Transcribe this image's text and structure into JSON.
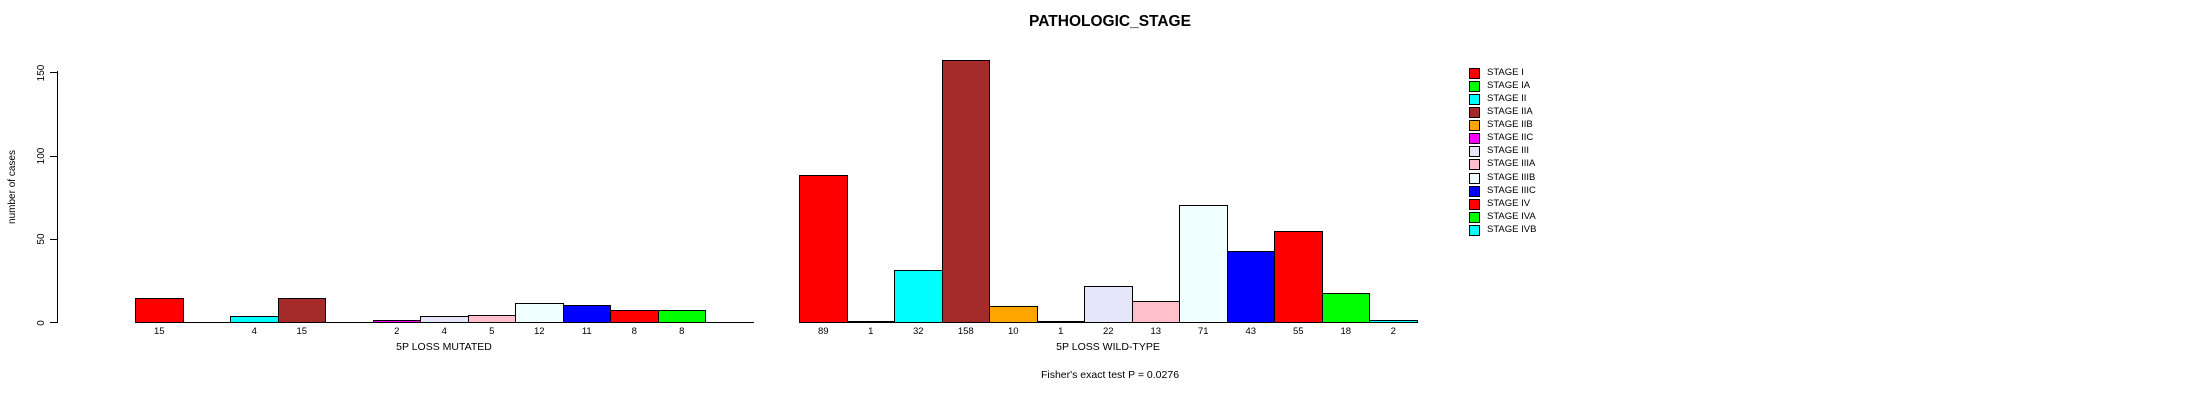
{
  "title": "PATHOLOGIC_STAGE",
  "footer": "Fisher's exact test P = 0.0276",
  "y_axis": {
    "label": "number of cases",
    "ticks": [
      0,
      50,
      100,
      150
    ]
  },
  "legend": {
    "position": "right"
  },
  "chart_data": {
    "type": "bar",
    "title": "PATHOLOGIC_STAGE",
    "xlabel": "",
    "ylabel": "number of cases",
    "ylim": [
      0,
      160
    ],
    "yticks": [
      0,
      50,
      100,
      150
    ],
    "grid": false,
    "legend_position": "right",
    "categories": [
      "STAGE I",
      "STAGE IA",
      "STAGE II",
      "STAGE IIA",
      "STAGE IIB",
      "STAGE IIC",
      "STAGE III",
      "STAGE IIIA",
      "STAGE IIIB",
      "STAGE IIIC",
      "STAGE IV",
      "STAGE IVA",
      "STAGE IVB"
    ],
    "colors": [
      "#FF0000",
      "#00FF00",
      "#00FFFF",
      "#A52A2A",
      "#FFA500",
      "#FF00FF",
      "#E6E6FA",
      "#FFC0CB",
      "#F0FFFF",
      "#0000FF",
      "#FF0000",
      "#00FF00",
      "#00FFFF"
    ],
    "groups": [
      {
        "label": "5P LOSS MUTATED",
        "values": [
          15,
          0,
          4,
          15,
          0,
          2,
          4,
          5,
          12,
          11,
          8,
          8,
          0
        ]
      },
      {
        "label": "5P LOSS WILD-TYPE",
        "values": [
          89,
          1,
          32,
          158,
          10,
          1,
          22,
          13,
          71,
          43,
          55,
          18,
          2
        ]
      }
    ],
    "annotation": "Fisher's exact test P = 0.0276",
    "bar_value_labels_shown": true
  }
}
